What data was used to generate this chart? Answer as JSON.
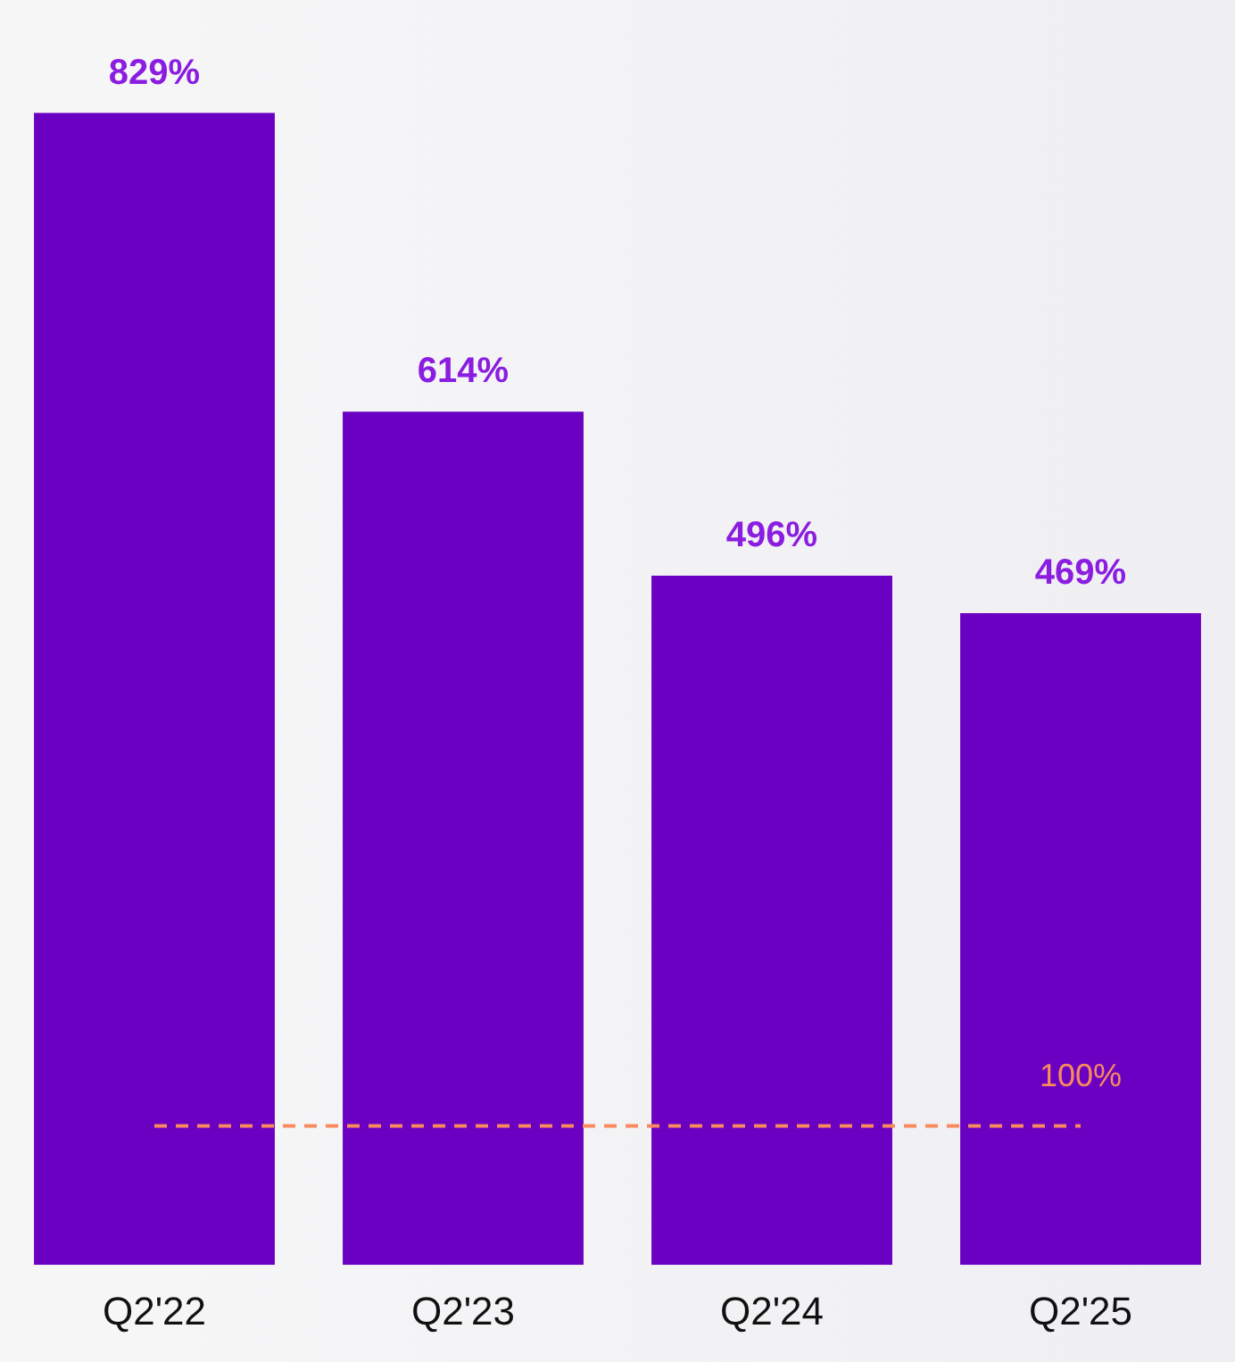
{
  "chart_data": {
    "type": "bar",
    "categories": [
      "Q2'22",
      "Q2'23",
      "Q2'24",
      "Q2'25"
    ],
    "values": [
      829,
      614,
      496,
      469
    ],
    "value_labels": [
      "829%",
      "614%",
      "496%",
      "469%"
    ],
    "color": "#6a00c2",
    "grid": false,
    "legend": false,
    "tick_labels": "x",
    "ref_lines": [
      {
        "axis": "y",
        "value": 100,
        "label": "100%",
        "color": "#f98a5e",
        "line_style": "dashed"
      }
    ]
  }
}
